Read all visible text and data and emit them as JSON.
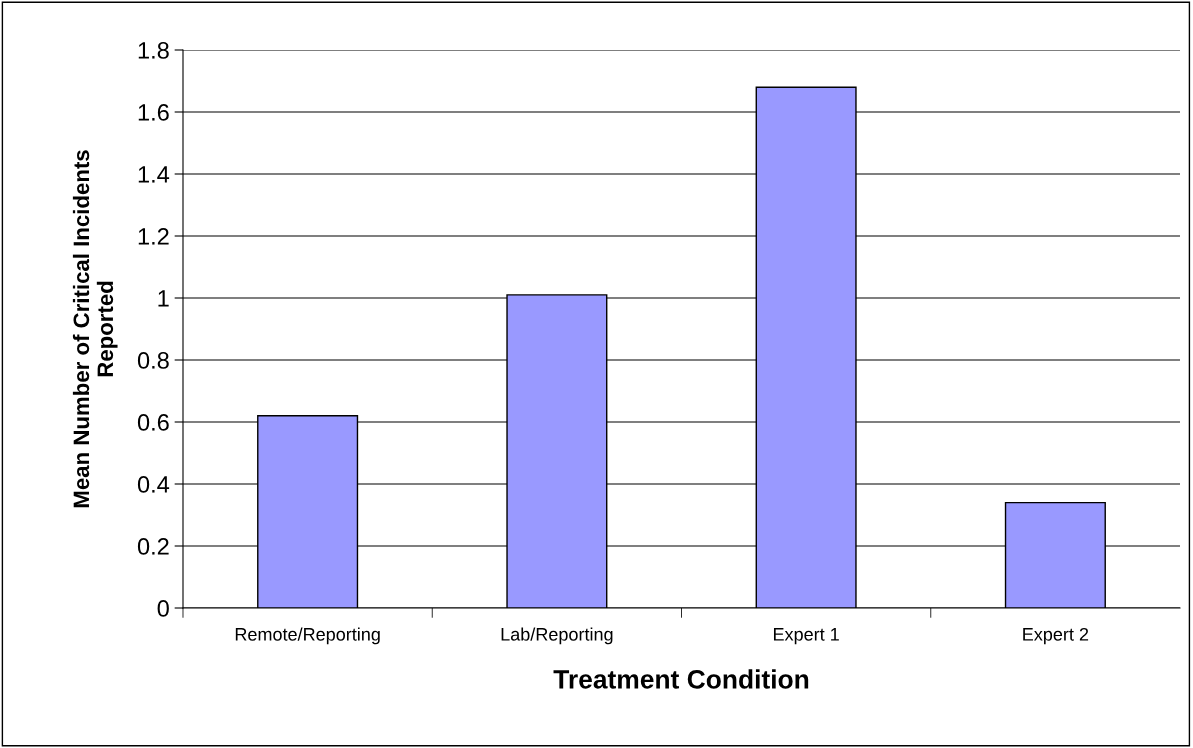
{
  "chart_data": {
    "type": "bar",
    "xlabel": "Treatment Condition",
    "ylabel": "Mean Number of Critical Incidents\nReported",
    "categories": [
      "Remote/Reporting",
      "Lab/Reporting",
      "Expert 1",
      "Expert 2"
    ],
    "values": [
      0.62,
      1.01,
      1.68,
      0.34
    ],
    "color": "#9999ff",
    "ylim": [
      0,
      1.8
    ],
    "yticks": [
      0,
      0.2,
      0.4,
      0.6,
      0.8,
      1,
      1.2,
      1.4,
      1.6,
      1.8
    ],
    "grid": "y"
  }
}
